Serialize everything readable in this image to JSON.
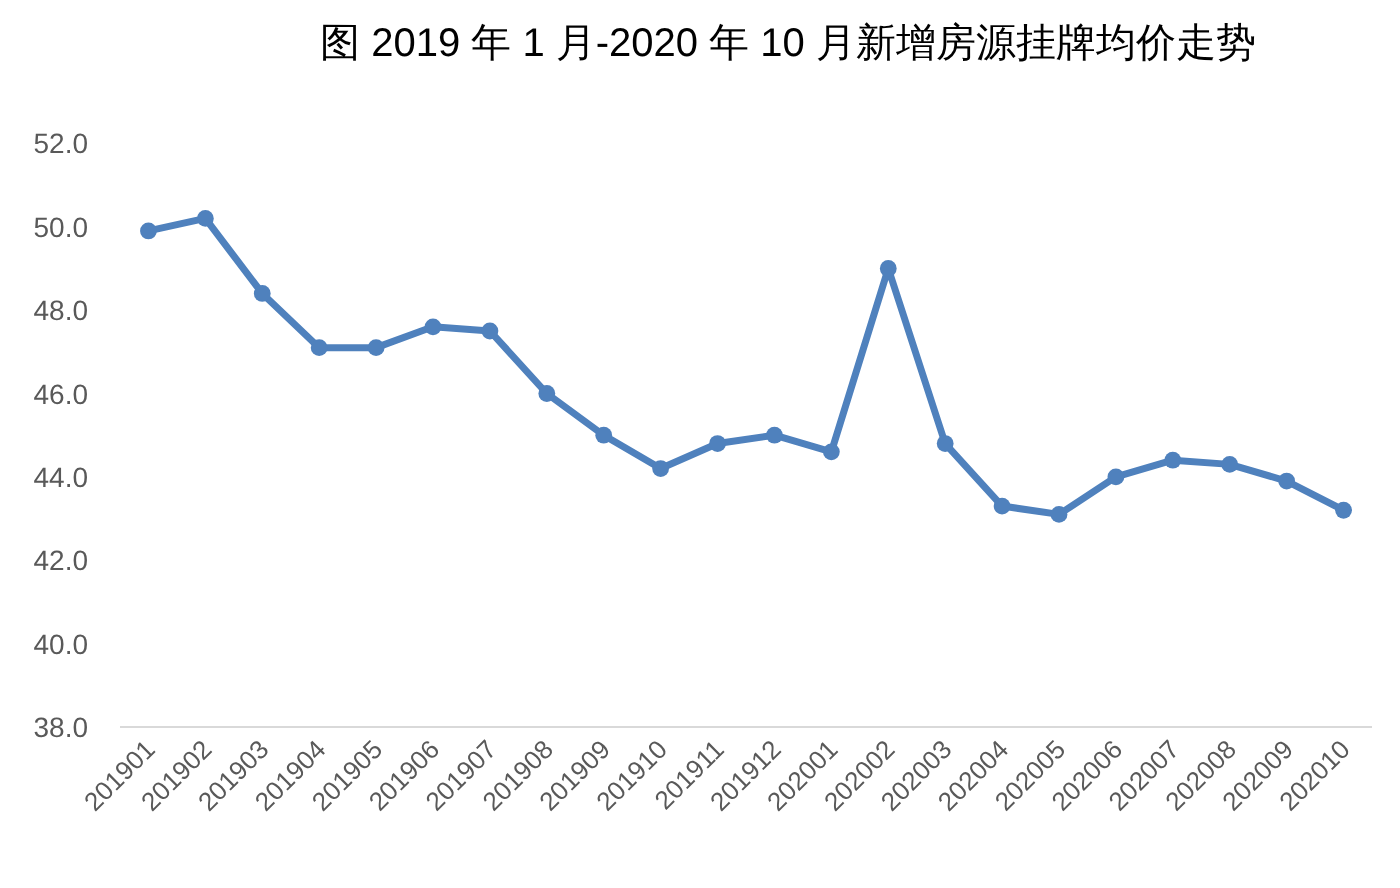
{
  "chart_data": {
    "type": "line",
    "title": "图 2019 年 1 月-2020 年 10 月新增房源挂牌均价走势",
    "categories": [
      "201901",
      "201902",
      "201903",
      "201904",
      "201905",
      "201906",
      "201907",
      "201908",
      "201909",
      "201910",
      "201911",
      "201912",
      "202001",
      "202002",
      "202003",
      "202004",
      "202005",
      "202006",
      "202007",
      "202008",
      "202009",
      "202010"
    ],
    "series": [
      {
        "color": "#4f81bd",
        "values": [
          49.9,
          50.2,
          48.4,
          47.1,
          47.1,
          47.6,
          47.5,
          46.0,
          45.0,
          44.2,
          44.8,
          45.0,
          44.6,
          49.0,
          44.8,
          43.3,
          43.1,
          44.0,
          44.4,
          44.3,
          43.9,
          43.2
        ]
      }
    ],
    "ylim": [
      38,
      52
    ],
    "yticks": [
      {
        "value": 38,
        "label": "38.0"
      },
      {
        "value": 40,
        "label": "40.0"
      },
      {
        "value": 42,
        "label": "42.0"
      },
      {
        "value": 44,
        "label": "44.0"
      },
      {
        "value": 46,
        "label": "46.0"
      },
      {
        "value": 48,
        "label": "48.0"
      },
      {
        "value": 50,
        "label": "50.0"
      },
      {
        "value": 52,
        "label": "52.0"
      }
    ],
    "marker": "circle",
    "line_style": "solid"
  }
}
